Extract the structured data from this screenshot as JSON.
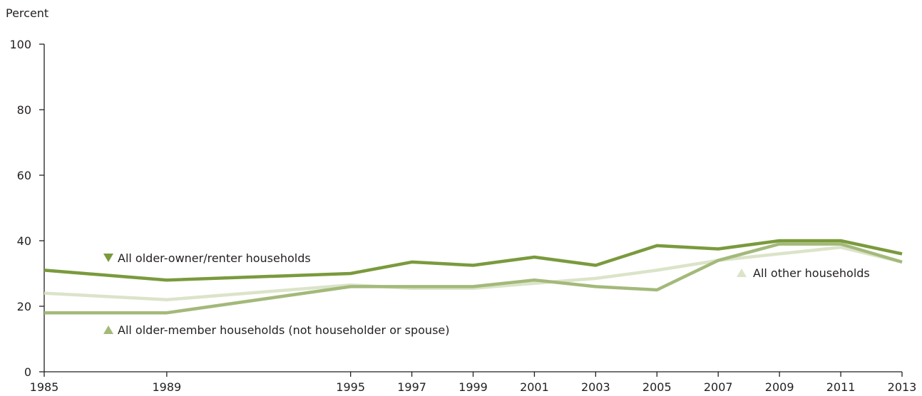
{
  "chart_data": {
    "type": "line",
    "title": "",
    "xlabel": "",
    "ylabel": "Percent",
    "x": [
      1985,
      1989,
      1995,
      1997,
      1999,
      2001,
      2003,
      2005,
      2007,
      2009,
      2011,
      2013
    ],
    "xlim": [
      1985,
      2013
    ],
    "ylim": [
      0,
      100
    ],
    "y_ticks": [
      0,
      20,
      40,
      60,
      80,
      100
    ],
    "grid": false,
    "series": [
      {
        "name": "All older-owner/renter households",
        "color": "#7a9a3d",
        "marker": "triangle-down",
        "values": [
          31,
          28,
          30,
          33.5,
          32.5,
          35,
          32.5,
          38.5,
          37.5,
          40,
          40,
          36
        ]
      },
      {
        "name": "All older-member households (not householder or spouse)",
        "color": "#a3b97a",
        "marker": "triangle-up",
        "values": [
          18,
          18,
          26,
          26,
          26,
          28,
          26,
          25,
          34,
          39,
          39,
          33.5
        ]
      },
      {
        "name": "All other households",
        "color": "#dbe4c9",
        "marker": "triangle-up",
        "values": [
          24,
          22,
          26.5,
          25.5,
          25.5,
          27,
          28.5,
          31,
          34,
          36,
          38,
          33.5
        ]
      }
    ]
  }
}
